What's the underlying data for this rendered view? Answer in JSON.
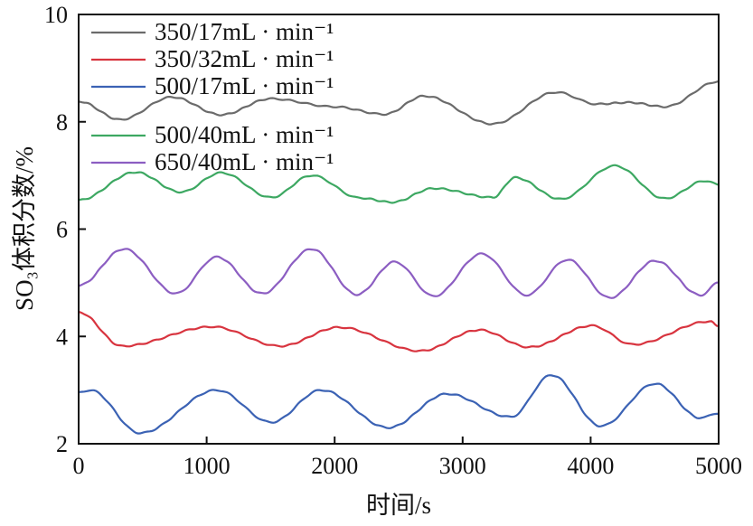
{
  "chart_data": {
    "type": "line",
    "title": "",
    "xlabel": "时间/s",
    "ylabel": "SO₃体积分数/%",
    "xlim": [
      0,
      5000
    ],
    "ylim": [
      2,
      10
    ],
    "xticks": [
      "0",
      "1000",
      "2000",
      "3000",
      "4000",
      "5000"
    ],
    "yticks": [
      "2",
      "4",
      "6",
      "8",
      "10"
    ],
    "xtick_values": [
      0,
      1000,
      2000,
      3000,
      4000,
      5000
    ],
    "ytick_values": [
      2,
      4,
      6,
      8,
      10
    ],
    "grid": false,
    "legend_position": "top-left",
    "series": [
      {
        "name": "350/17mL · min⁻¹",
        "color": "#6b6b6b",
        "x": [
          0,
          325,
          730,
          1115,
          1500,
          2000,
          2390,
          2700,
          3235,
          3730,
          4050,
          4300,
          4580,
          5000
        ],
        "y": [
          8.38,
          8.04,
          8.46,
          8.13,
          8.43,
          8.28,
          8.14,
          8.48,
          7.96,
          8.55,
          8.33,
          8.36,
          8.28,
          8.75
        ]
      },
      {
        "name": "350/32mL · min⁻¹",
        "color": "#d8343f",
        "x": [
          0,
          340,
          1045,
          1575,
          2035,
          2670,
          3130,
          3520,
          4010,
          4330,
          4930,
          5000
        ],
        "y": [
          4.45,
          3.82,
          4.18,
          3.82,
          4.17,
          3.73,
          4.12,
          3.8,
          4.2,
          3.85,
          4.28,
          4.2
        ]
      },
      {
        "name": "500/17mL · min⁻¹",
        "color": "#3b62b4",
        "x": [
          0,
          90,
          480,
          1080,
          1505,
          1895,
          2420,
          2880,
          3375,
          3695,
          4080,
          4505,
          4860,
          5000
        ],
        "y": [
          2.95,
          3.0,
          2.2,
          3.0,
          2.4,
          3.0,
          2.3,
          2.93,
          2.5,
          3.28,
          2.33,
          3.12,
          2.48,
          2.57
        ]
      },
      {
        "name": "500/40mL · min⁻¹",
        "color": "#3da862",
        "x": [
          0,
          445,
          800,
          1115,
          1505,
          1820,
          2200,
          2450,
          2775,
          3235,
          3410,
          3765,
          4190,
          4580,
          4895,
          5000
        ],
        "y": [
          6.54,
          7.06,
          6.69,
          7.05,
          6.59,
          7.0,
          6.58,
          6.5,
          6.76,
          6.59,
          6.96,
          6.56,
          7.18,
          6.57,
          6.9,
          6.83
        ]
      },
      {
        "name": "650/40mL · min⁻¹",
        "color": "#8c5ec2",
        "x": [
          0,
          355,
          760,
          1080,
          1435,
          1820,
          2175,
          2470,
          2775,
          3150,
          3500,
          3820,
          4150,
          4505,
          4860,
          5000
        ],
        "y": [
          4.95,
          5.63,
          4.8,
          5.48,
          4.8,
          5.63,
          4.78,
          5.39,
          4.75,
          5.54,
          4.77,
          5.43,
          4.72,
          5.41,
          4.77,
          5.0
        ]
      }
    ]
  }
}
